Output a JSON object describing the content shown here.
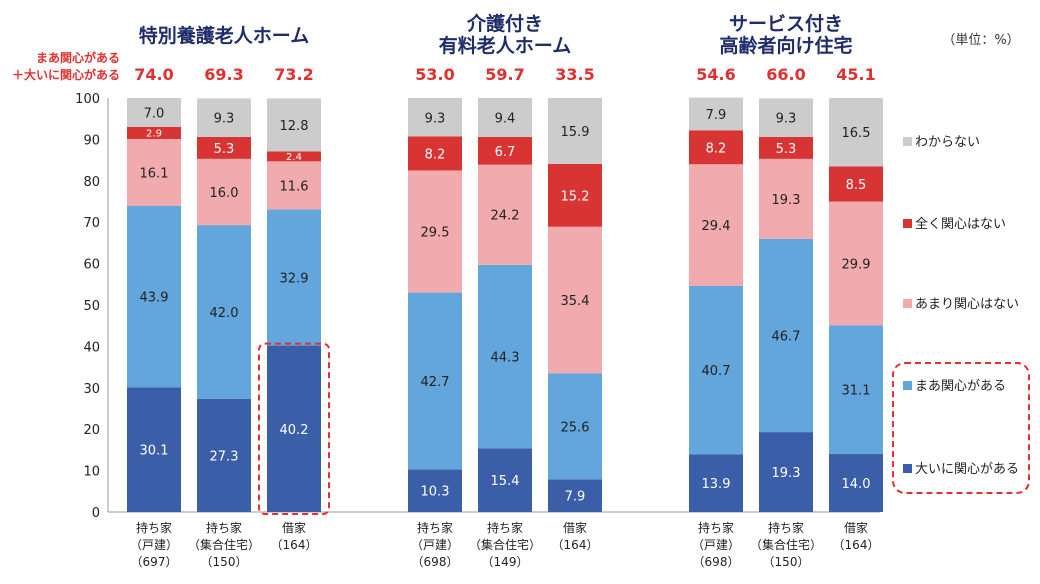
{
  "chart_data": {
    "type": "stacked_bar",
    "unit_note": "（単位：%）",
    "ylim": [
      0,
      100
    ],
    "yticks": [
      0,
      10,
      20,
      30,
      40,
      50,
      60,
      70,
      80,
      90,
      100
    ],
    "sum_label_lines": [
      "まあ関心がある",
      "＋大いに関心がある"
    ],
    "series": [
      {
        "name": "大いに関心がある",
        "color": "#3a5fa8",
        "text_color": "#ffffff"
      },
      {
        "name": "まあ関心がある",
        "color": "#62a6dc",
        "text_color": "#222222"
      },
      {
        "name": "あまり関心はない",
        "color": "#f1abae",
        "text_color": "#222222"
      },
      {
        "name": "全く関心はない",
        "color": "#d93434",
        "text_color": "#ffffff"
      },
      {
        "name": "わからない",
        "color": "#cccccc",
        "text_color": "#222222"
      }
    ],
    "legend_order": [
      "わからない",
      "全く関心はない",
      "あまり関心はない",
      "まあ関心がある",
      "大いに関心がある"
    ],
    "groups": [
      {
        "title_lines": [
          "特別養護老人ホーム"
        ],
        "bars": [
          {
            "label_lines": [
              "持ち家",
              "（戸建）",
              "（697）"
            ],
            "sum": "74.0",
            "values": [
              30.1,
              43.9,
              16.1,
              2.9,
              7.0
            ]
          },
          {
            "label_lines": [
              "持ち家",
              "（集合住宅）",
              "（150）"
            ],
            "sum": "69.3",
            "values": [
              27.3,
              42.0,
              16.0,
              5.3,
              9.3
            ]
          },
          {
            "label_lines": [
              "借家",
              "（164）"
            ],
            "sum": "73.2",
            "values": [
              40.2,
              32.9,
              11.6,
              2.4,
              12.8
            ]
          }
        ]
      },
      {
        "title_lines": [
          "介護付き",
          "有料老人ホーム"
        ],
        "bars": [
          {
            "label_lines": [
              "持ち家",
              "（戸建）",
              "（698）"
            ],
            "sum": "53.0",
            "values": [
              10.3,
              42.7,
              29.5,
              8.2,
              9.3
            ]
          },
          {
            "label_lines": [
              "持ち家",
              "（集合住宅）",
              "（149）"
            ],
            "sum": "59.7",
            "values": [
              15.4,
              44.3,
              24.2,
              6.7,
              9.4
            ]
          },
          {
            "label_lines": [
              "借家",
              "（164）"
            ],
            "sum": "33.5",
            "values": [
              7.9,
              25.6,
              35.4,
              15.2,
              15.9
            ]
          }
        ]
      },
      {
        "title_lines": [
          "サービス付き",
          "高齢者向け住宅"
        ],
        "bars": [
          {
            "label_lines": [
              "持ち家",
              "（戸建）",
              "（698）"
            ],
            "sum": "54.6",
            "values": [
              13.9,
              40.7,
              29.4,
              8.2,
              7.9
            ]
          },
          {
            "label_lines": [
              "持ち家",
              "（集合住宅）",
              "（150）"
            ],
            "sum": "66.0",
            "values": [
              19.3,
              46.7,
              19.3,
              5.3,
              9.3
            ]
          },
          {
            "label_lines": [
              "借家",
              "（164）"
            ],
            "sum": "45.1",
            "values": [
              14.0,
              31.1,
              29.9,
              8.5,
              16.5
            ]
          }
        ]
      }
    ],
    "highlight_notes": [
      "特別養護老人ホーム・借家の「大いに関心がある」を赤い点線で強調",
      "凡例の「まあ関心がある」「大いに関心がある」を赤い点線で強調"
    ]
  }
}
